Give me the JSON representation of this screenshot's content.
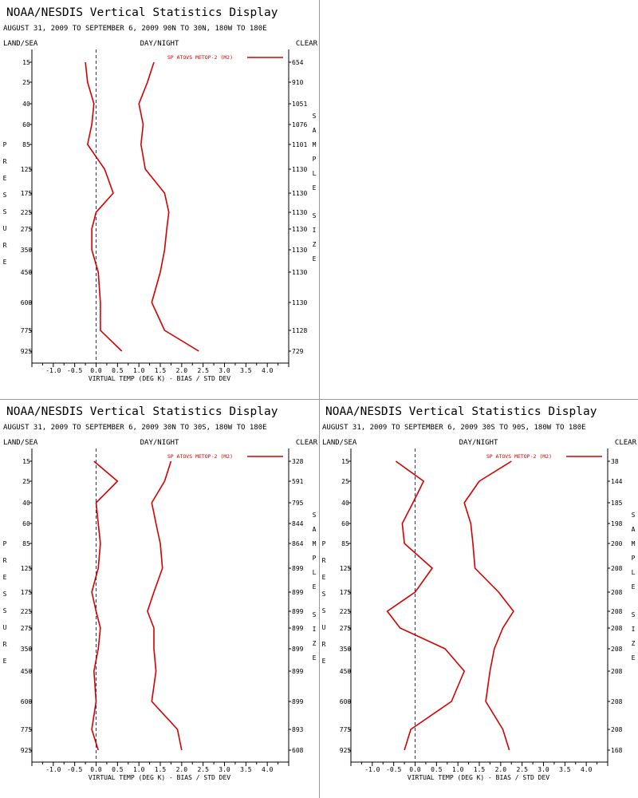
{
  "colors": {
    "series": "#d40000",
    "axis": "#000000",
    "zero_line": "#333366",
    "divider": "#9a9a9a"
  },
  "labels": {
    "title": "NOAA/NESDIS Vertical Statistics Display",
    "land_sea": "LAND/SEA",
    "day_night": "DAY/NIGHT",
    "clear": "CLEAR",
    "xlabel": "VIRTUAL TEMP (DEG K) - BIAS / STD DEV",
    "pressure_letters": [
      "P",
      "R",
      "E",
      "S",
      "S",
      "U",
      "R",
      "E"
    ],
    "sample_letters": [
      "S",
      "A",
      "M",
      "P",
      "L",
      "E"
    ],
    "size_letters": [
      "S",
      "I",
      "Z",
      "E"
    ]
  },
  "chart_data": [
    {
      "type": "line",
      "title": "NOAA/NESDIS Vertical Statistics Display",
      "subtitle": "AUGUST 31, 2009 TO SEPTEMBER 6, 2009 90N TO 30N, 180W TO 180E",
      "xlabel": "VIRTUAL TEMP (DEG K) - BIAS / STD DEV",
      "ylabel": "PRESSURE",
      "y2label": "SAMPLE SIZE",
      "xlim": [
        -1.5,
        4.5
      ],
      "xticks": [
        "-1.0",
        "-0.5",
        "0.0",
        "0.5",
        "1.0",
        "1.5",
        "2.0",
        "2.5",
        "3.0",
        "3.5",
        "4.0"
      ],
      "pressure_levels": [
        "15",
        "25",
        "40",
        "60",
        "85",
        "125",
        "175",
        "225",
        "275",
        "350",
        "450",
        "600",
        "775",
        "925"
      ],
      "sample_size": [
        "654",
        "910",
        "1051",
        "1076",
        "1101",
        "1130",
        "1130",
        "1130",
        "1130",
        "1130",
        "1130",
        "1130",
        "1128",
        "729"
      ],
      "legend": "SP ATOVS METOP-2 (M2)",
      "legend_position": "top-right",
      "series": [
        {
          "name": "bias",
          "values": [
            -0.25,
            -0.2,
            -0.05,
            -0.1,
            -0.2,
            0.2,
            0.4,
            0.0,
            -0.1,
            -0.1,
            0.05,
            0.1,
            0.1,
            0.6
          ]
        },
        {
          "name": "std dev",
          "values": [
            1.35,
            1.2,
            1.0,
            1.1,
            1.05,
            1.15,
            1.6,
            1.7,
            1.65,
            1.6,
            1.5,
            1.3,
            1.6,
            2.4
          ]
        }
      ]
    },
    {
      "type": "line",
      "title": "NOAA/NESDIS Vertical Statistics Display",
      "subtitle": "AUGUST 31, 2009 TO SEPTEMBER 6, 2009 30N TO 30S, 180W TO 180E",
      "xlabel": "VIRTUAL TEMP (DEG K) - BIAS / STD DEV",
      "ylabel": "PRESSURE",
      "y2label": "SAMPLE SIZE",
      "xlim": [
        -1.5,
        4.5
      ],
      "xticks": [
        "-1.0",
        "-0.5",
        "0.0",
        "0.5",
        "1.0",
        "1.5",
        "2.0",
        "2.5",
        "3.0",
        "3.5",
        "4.0"
      ],
      "pressure_levels": [
        "15",
        "25",
        "40",
        "60",
        "85",
        "125",
        "175",
        "225",
        "275",
        "350",
        "450",
        "600",
        "775",
        "925"
      ],
      "sample_size": [
        "328",
        "591",
        "795",
        "844",
        "864",
        "899",
        "899",
        "899",
        "899",
        "899",
        "899",
        "899",
        "893",
        "608"
      ],
      "legend": "SP ATOVS METOP-2 (M2)",
      "legend_position": "top-right",
      "series": [
        {
          "name": "bias",
          "values": [
            -0.05,
            0.5,
            -0.0,
            0.05,
            0.1,
            0.05,
            -0.1,
            0.0,
            0.1,
            0.05,
            -0.05,
            0.0,
            -0.1,
            0.05
          ]
        },
        {
          "name": "std dev",
          "values": [
            1.75,
            1.6,
            1.3,
            1.4,
            1.5,
            1.55,
            1.35,
            1.2,
            1.35,
            1.35,
            1.4,
            1.3,
            1.9,
            2.0
          ]
        }
      ]
    },
    {
      "type": "line",
      "title": "NOAA/NESDIS Vertical Statistics Display",
      "subtitle": "AUGUST 31, 2009 TO SEPTEMBER 6, 2009 30S TO 90S, 180W TO 180E",
      "xlabel": "VIRTUAL TEMP (DEG K) - BIAS / STD DEV",
      "ylabel": "PRESSURE",
      "y2label": "SAMPLE SIZE",
      "xlim": [
        -1.5,
        4.5
      ],
      "xticks": [
        "-1.0",
        "-0.5",
        "0.0",
        "0.5",
        "1.0",
        "1.5",
        "2.0",
        "2.5",
        "3.0",
        "3.5",
        "4.0"
      ],
      "pressure_levels": [
        "15",
        "25",
        "40",
        "60",
        "85",
        "125",
        "175",
        "225",
        "275",
        "350",
        "450",
        "600",
        "775",
        "925"
      ],
      "sample_size": [
        "38",
        "144",
        "185",
        "198",
        "200",
        "208",
        "208",
        "208",
        "208",
        "208",
        "208",
        "208",
        "208",
        "168"
      ],
      "legend": "SP ATOVS METOP-2 (M2)",
      "legend_position": "top-right",
      "series": [
        {
          "name": "bias",
          "values": [
            -0.45,
            0.2,
            -0.05,
            -0.3,
            -0.25,
            0.4,
            0.0,
            -0.65,
            -0.35,
            0.7,
            1.15,
            0.85,
            -0.1,
            -0.25
          ]
        },
        {
          "name": "std dev",
          "values": [
            2.25,
            1.5,
            1.15,
            1.3,
            1.35,
            1.4,
            1.95,
            2.3,
            2.05,
            1.85,
            1.75,
            1.65,
            2.05,
            2.2
          ]
        }
      ]
    }
  ]
}
